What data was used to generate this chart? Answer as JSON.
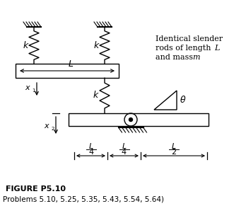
{
  "bg_color": "#ffffff",
  "title_text": "FIGURE P5.10",
  "subtitle_text": "Problems 5.10, 5.25, 5.35, 5.43, 5.54, 5.64)",
  "annotation_line1": "Identical slender",
  "annotation_line2": "rods of length ",
  "annotation_line2b": "L",
  "annotation_line3": "and mass ",
  "annotation_line3b": "m",
  "label_k": "k",
  "label_L": "L",
  "label_x1": "x",
  "label_x2": "x",
  "label_theta": "θ",
  "dim_L": "L",
  "dim_4": "4",
  "dim_2": "2"
}
